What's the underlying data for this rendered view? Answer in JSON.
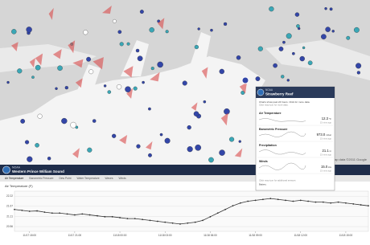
{
  "map": {
    "attribution": "Map data ©2011 Google"
  },
  "popup": {
    "source": "NOAA",
    "title": "Strawberry Reef",
    "note": "Charts show past 24 hours. Click for more data.",
    "subnote": "Click map icon for more data.",
    "readings": [
      {
        "label": "Air Temperature",
        "value": "12.3",
        "unit": "°F",
        "age": "15 mins ago"
      },
      {
        "label": "Barometric Pressure",
        "value": "973.0",
        "unit": "mbar",
        "age": "15 mins ago"
      },
      {
        "label": "Precipitation",
        "value": "21.1",
        "unit": "in",
        "age": "15 mins ago"
      },
      {
        "label": "Winds",
        "value": "15.0",
        "unit": "kts",
        "age": "15 mins ago"
      }
    ],
    "footer": "Click map icon for additional sensors",
    "battery": "Battery"
  },
  "panel": {
    "source": "NOAA",
    "title": "Western Prince William Sound",
    "tabs": [
      "Air Temperature",
      "Barometric Pressure",
      "Dew Point",
      "Water Temperature",
      "Waves",
      "Winds"
    ]
  },
  "chart": {
    "type": "line",
    "title": "Air Temperature (F)",
    "color": "#333333",
    "values": [
      21.5,
      21.45,
      21.4,
      21.42,
      21.35,
      21.3,
      21.3,
      21.25,
      21.2,
      21.25,
      21.2,
      21.15,
      21.1,
      21.1,
      21.05,
      21.0,
      21.0,
      20.95,
      20.9,
      20.85,
      20.8,
      20.75,
      20.7,
      20.75,
      20.8,
      20.9,
      21.1,
      21.3,
      21.5,
      21.7,
      21.85,
      21.95,
      22.0,
      22.05,
      22.1,
      22.05,
      22.0,
      21.95,
      22.0,
      21.95,
      21.9,
      21.9,
      21.85,
      21.9,
      21.85,
      21.8,
      21.75,
      21.7
    ],
    "xlim": [
      0,
      47
    ],
    "xticks": [
      {
        "value": 2,
        "label": "11/17 18:00"
      },
      {
        "value": 8,
        "label": "11/17 21:00"
      },
      {
        "value": 14,
        "label": "11/18 00:00"
      },
      {
        "value": 20,
        "label": "11/18 03:00"
      },
      {
        "value": 26,
        "label": "11/18 06:00"
      },
      {
        "value": 32,
        "label": "11/18 09:00"
      },
      {
        "value": 38,
        "label": "11/18 12:00"
      },
      {
        "value": 44,
        "label": "11/18 15:00"
      }
    ],
    "ylim": [
      20.3,
      22.5
    ],
    "yticks": [
      22.22,
      21.67,
      21.11,
      20.56
    ],
    "grid": true
  }
}
